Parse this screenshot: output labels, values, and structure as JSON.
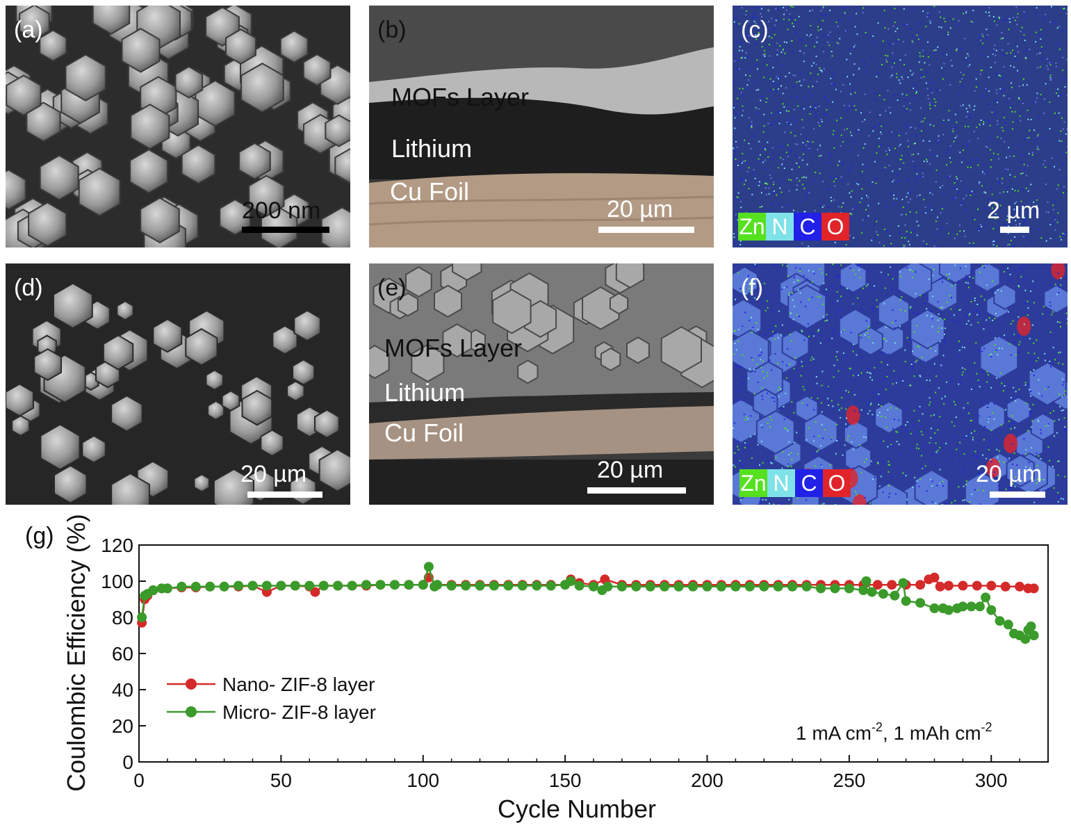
{
  "figure": {
    "panels": [
      {
        "letter": "(a)",
        "scalebar": "200 nm"
      },
      {
        "letter": "(b)",
        "scalebar": "20 µm",
        "layers": [
          "MOFs Layer",
          "Lithium",
          "Cu Foil"
        ]
      },
      {
        "letter": "(c)",
        "scalebar": "2 µm",
        "elements": [
          "Zn",
          "N",
          "C",
          "O"
        ]
      },
      {
        "letter": "(d)",
        "scalebar": "20 µm"
      },
      {
        "letter": "(e)",
        "scalebar": "20 µm",
        "layers": [
          "MOFs Layer",
          "Lithium",
          "Cu Foil"
        ]
      },
      {
        "letter": "(f)",
        "scalebar": "20 µm",
        "elements": [
          "Zn",
          "N",
          "C",
          "O"
        ]
      }
    ],
    "element_colors": {
      "Zn": "#55e020",
      "N": "#7fe2e8",
      "C": "#2121e8",
      "O": "#e0242a"
    }
  },
  "chart_data": {
    "type": "scatter",
    "panel_letter": "(g)",
    "xlabel": "Cycle Number",
    "ylabel": "Coulombic Efficiency (%)",
    "xlim": [
      0,
      320
    ],
    "ylim": [
      0,
      120
    ],
    "xticks": [
      0,
      50,
      100,
      150,
      200,
      250,
      300
    ],
    "yticks": [
      0,
      20,
      40,
      60,
      80,
      100,
      120
    ],
    "annotation": {
      "base1": "1 mA cm",
      "sup1": "-2",
      "base2": ", 1 mAh cm",
      "sup2": "-2"
    },
    "legend_position": "middle-left",
    "series": [
      {
        "name": "Nano- ZIF-8 layer",
        "color": "#d42a2a",
        "points": [
          [
            1,
            77
          ],
          [
            2,
            90
          ],
          [
            3,
            92
          ],
          [
            5,
            95
          ],
          [
            8,
            96
          ],
          [
            10,
            96
          ],
          [
            15,
            96.5
          ],
          [
            20,
            96.5
          ],
          [
            25,
            97
          ],
          [
            30,
            97
          ],
          [
            35,
            97
          ],
          [
            40,
            97.5
          ],
          [
            45,
            94
          ],
          [
            50,
            97.5
          ],
          [
            55,
            97.5
          ],
          [
            60,
            97
          ],
          [
            62,
            94
          ],
          [
            65,
            97.5
          ],
          [
            70,
            97.5
          ],
          [
            75,
            97.5
          ],
          [
            80,
            97.5
          ],
          [
            85,
            98
          ],
          [
            90,
            98
          ],
          [
            95,
            98
          ],
          [
            100,
            98
          ],
          [
            102,
            102
          ],
          [
            105,
            98
          ],
          [
            110,
            98
          ],
          [
            115,
            98
          ],
          [
            120,
            98
          ],
          [
            125,
            98
          ],
          [
            130,
            98
          ],
          [
            135,
            98
          ],
          [
            140,
            98
          ],
          [
            145,
            98
          ],
          [
            150,
            98
          ],
          [
            152,
            101
          ],
          [
            155,
            99
          ],
          [
            160,
            98
          ],
          [
            164,
            101
          ],
          [
            170,
            98
          ],
          [
            175,
            98
          ],
          [
            180,
            98
          ],
          [
            185,
            98
          ],
          [
            190,
            98
          ],
          [
            195,
            98
          ],
          [
            200,
            98
          ],
          [
            205,
            98
          ],
          [
            210,
            98
          ],
          [
            215,
            98
          ],
          [
            220,
            98
          ],
          [
            225,
            98
          ],
          [
            230,
            98
          ],
          [
            235,
            98
          ],
          [
            240,
            98
          ],
          [
            245,
            98
          ],
          [
            250,
            98
          ],
          [
            255,
            98
          ],
          [
            260,
            98
          ],
          [
            265,
            98
          ],
          [
            270,
            98
          ],
          [
            275,
            98
          ],
          [
            278,
            101
          ],
          [
            280,
            102
          ],
          [
            282,
            97
          ],
          [
            285,
            97.5
          ],
          [
            290,
            97.5
          ],
          [
            295,
            97.5
          ],
          [
            300,
            97.5
          ],
          [
            305,
            97
          ],
          [
            310,
            97
          ],
          [
            313,
            96
          ],
          [
            315,
            96
          ]
        ]
      },
      {
        "name": "Micro- ZIF-8 layer",
        "color": "#3a9a2a",
        "points": [
          [
            1,
            80
          ],
          [
            2,
            92
          ],
          [
            3,
            93
          ],
          [
            5,
            95
          ],
          [
            8,
            96
          ],
          [
            10,
            96
          ],
          [
            15,
            97
          ],
          [
            20,
            97
          ],
          [
            25,
            97
          ],
          [
            30,
            97
          ],
          [
            35,
            97.5
          ],
          [
            40,
            97.5
          ],
          [
            45,
            97.5
          ],
          [
            50,
            97.5
          ],
          [
            55,
            97.5
          ],
          [
            60,
            97.5
          ],
          [
            65,
            97.5
          ],
          [
            70,
            97.5
          ],
          [
            75,
            97.5
          ],
          [
            80,
            98
          ],
          [
            85,
            98
          ],
          [
            90,
            98
          ],
          [
            95,
            98
          ],
          [
            100,
            98
          ],
          [
            102,
            108
          ],
          [
            104,
            97
          ],
          [
            105,
            98
          ],
          [
            110,
            97.5
          ],
          [
            115,
            97.5
          ],
          [
            120,
            97.5
          ],
          [
            125,
            97.5
          ],
          [
            130,
            97.5
          ],
          [
            135,
            97.5
          ],
          [
            140,
            97.5
          ],
          [
            145,
            97.5
          ],
          [
            150,
            98
          ],
          [
            152,
            100
          ],
          [
            155,
            97.5
          ],
          [
            160,
            97
          ],
          [
            163,
            95
          ],
          [
            165,
            97
          ],
          [
            170,
            97
          ],
          [
            175,
            97
          ],
          [
            180,
            97
          ],
          [
            185,
            97
          ],
          [
            190,
            97
          ],
          [
            195,
            97
          ],
          [
            200,
            97
          ],
          [
            205,
            97
          ],
          [
            210,
            97
          ],
          [
            215,
            97
          ],
          [
            220,
            97
          ],
          [
            225,
            97
          ],
          [
            230,
            97
          ],
          [
            235,
            97
          ],
          [
            240,
            96
          ],
          [
            245,
            96
          ],
          [
            250,
            96
          ],
          [
            255,
            95
          ],
          [
            256,
            100
          ],
          [
            258,
            94
          ],
          [
            262,
            93
          ],
          [
            266,
            92
          ],
          [
            269,
            99
          ],
          [
            270,
            89
          ],
          [
            275,
            88
          ],
          [
            280,
            85
          ],
          [
            283,
            85
          ],
          [
            285,
            84
          ],
          [
            288,
            85
          ],
          [
            290,
            86
          ],
          [
            293,
            86
          ],
          [
            296,
            86
          ],
          [
            298,
            91
          ],
          [
            300,
            84
          ],
          [
            303,
            78
          ],
          [
            306,
            76
          ],
          [
            308,
            71
          ],
          [
            310,
            70
          ],
          [
            312,
            68
          ],
          [
            313,
            73
          ],
          [
            314,
            75
          ],
          [
            315,
            70
          ]
        ]
      }
    ]
  }
}
